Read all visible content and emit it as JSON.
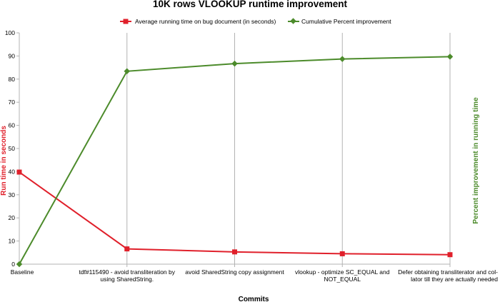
{
  "chart_data": {
    "type": "line",
    "title": "10K rows VLOOKUP runtime improvement",
    "xlabel": "Commits",
    "ylabel": "Run time in seconds",
    "y2label": "Percent improvement in running time",
    "ylim": [
      0,
      100
    ],
    "yticks": [
      0,
      10,
      20,
      30,
      40,
      50,
      60,
      70,
      80,
      90,
      100
    ],
    "grid": "vertical",
    "legend": "top",
    "categories": [
      "Baseline",
      "tdf#115490 - avoid transliteration by using SharedString.",
      "avoid SharedString copy assignment",
      "vlookup - optimize SC_EQUAL and NOT_EQUAL",
      "Defer obtaining transliterator and collator till they are actually needed"
    ],
    "category_lines": [
      [
        "Baseline"
      ],
      [
        "tdf#115490 - avoid transliteration by",
        "using SharedString."
      ],
      [
        "avoid SharedString copy assignment"
      ],
      [
        "vlookup - optimize SC_EQUAL and",
        "NOT_EQUAL"
      ],
      [
        "Defer obtaining transliterator and col-",
        "lator till they are actually needed"
      ]
    ],
    "series": [
      {
        "name": "Average running time on bug document (in seconds)",
        "color": "#e0202b",
        "marker": "square",
        "values": [
          39.8,
          6.6,
          5.3,
          4.5,
          4.1
        ]
      },
      {
        "name": "Cumulative Percent improvement",
        "color": "#4c8b2b",
        "marker": "diamond",
        "values": [
          0,
          83.4,
          86.7,
          88.7,
          89.7
        ]
      }
    ],
    "colors": {
      "ylabel": "#e0202b",
      "y2label": "#4c8b2b",
      "axis": "#b3b3b3",
      "grid": "#b3b3b3"
    }
  }
}
